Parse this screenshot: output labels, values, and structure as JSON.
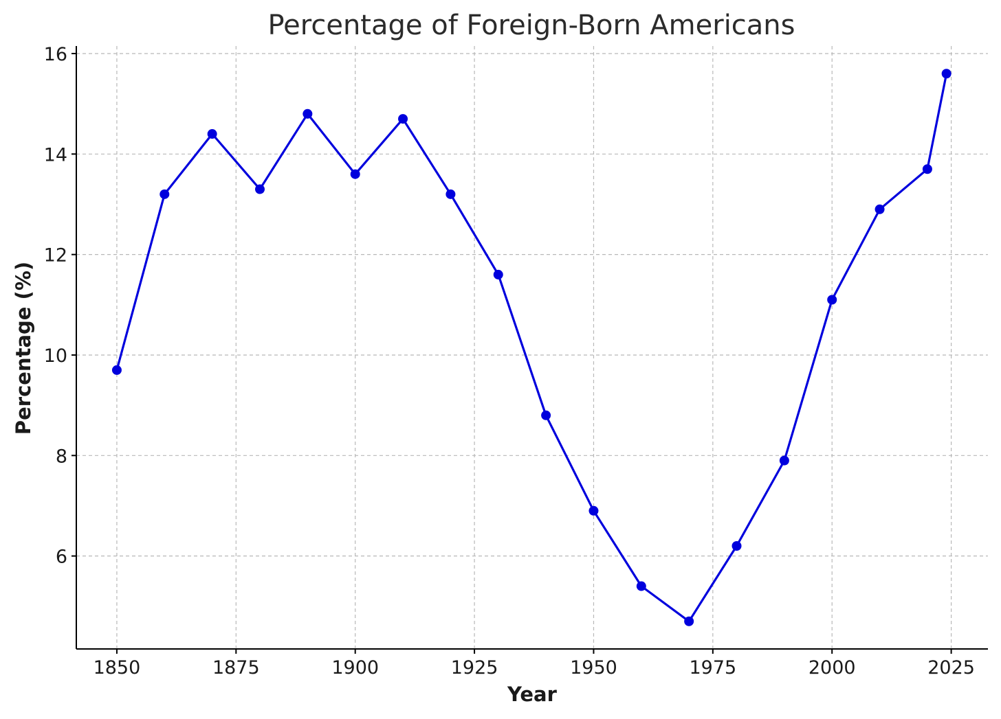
{
  "chart_data": {
    "type": "line",
    "title": "Percentage of Foreign-Born Americans",
    "xlabel": "Year",
    "ylabel": "Percentage (%)",
    "xlim": [
      1841.5,
      2032.7
    ],
    "ylim": [
      4.15,
      16.15
    ],
    "xticks": [
      1850,
      1875,
      1900,
      1925,
      1950,
      1975,
      2000,
      2025
    ],
    "yticks": [
      6,
      8,
      10,
      12,
      14,
      16
    ],
    "grid": true,
    "line_color": "#0000dd",
    "series": [
      {
        "x": [
          1850,
          1860,
          1870,
          1880,
          1890,
          1900,
          1910,
          1920,
          1930,
          1940,
          1950,
          1960,
          1970,
          1980,
          1990,
          2000,
          2010,
          2020,
          2024
        ],
        "values": [
          9.7,
          13.2,
          14.4,
          13.3,
          14.8,
          13.6,
          14.7,
          13.2,
          11.6,
          8.8,
          6.9,
          5.4,
          4.7,
          6.2,
          7.9,
          11.1,
          12.9,
          13.7,
          15.6
        ]
      }
    ]
  }
}
